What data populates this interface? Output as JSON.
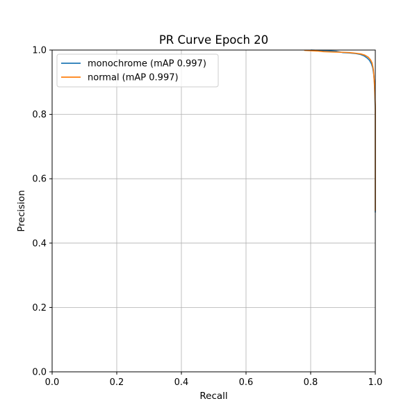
{
  "chart_data": {
    "type": "line",
    "title": "PR Curve Epoch 20",
    "xlabel": "Recall",
    "ylabel": "Precision",
    "xlim": [
      0.0,
      1.0
    ],
    "ylim": [
      0.0,
      1.0
    ],
    "xticks": [
      0.0,
      0.2,
      0.4,
      0.6,
      0.8,
      1.0
    ],
    "yticks": [
      0.0,
      0.2,
      0.4,
      0.6,
      0.8,
      1.0
    ],
    "xtick_labels": [
      "0.0",
      "0.2",
      "0.4",
      "0.6",
      "0.8",
      "1.0"
    ],
    "ytick_labels": [
      "0.0",
      "0.2",
      "0.4",
      "0.6",
      "0.8",
      "1.0"
    ],
    "grid": true,
    "legend_position": "top-left",
    "series": [
      {
        "name": "monochrome (mAP 0.997)",
        "color": "#1f77b4",
        "x": [
          0.8,
          0.85,
          0.88,
          0.9,
          0.92,
          0.94,
          0.955,
          0.965,
          0.975,
          0.982,
          0.988,
          0.992,
          0.995,
          0.997,
          0.998,
          0.999,
          1.0,
          1.0
        ],
        "y": [
          1.0,
          0.998,
          0.996,
          0.992,
          0.991,
          0.989,
          0.986,
          0.982,
          0.975,
          0.968,
          0.957,
          0.945,
          0.925,
          0.9,
          0.87,
          0.84,
          0.815,
          0.495
        ]
      },
      {
        "name": "normal (mAP 0.997)",
        "color": "#ff7f0e",
        "x": [
          0.78,
          0.82,
          0.84,
          0.87,
          0.9,
          0.92,
          0.94,
          0.955,
          0.968,
          0.978,
          0.985,
          0.99,
          0.994,
          0.996,
          0.998,
          0.999,
          1.0,
          1.0
        ],
        "y": [
          0.999,
          0.997,
          0.995,
          0.994,
          0.993,
          0.992,
          0.99,
          0.988,
          0.984,
          0.978,
          0.97,
          0.96,
          0.94,
          0.915,
          0.885,
          0.855,
          0.83,
          0.5
        ]
      }
    ]
  }
}
